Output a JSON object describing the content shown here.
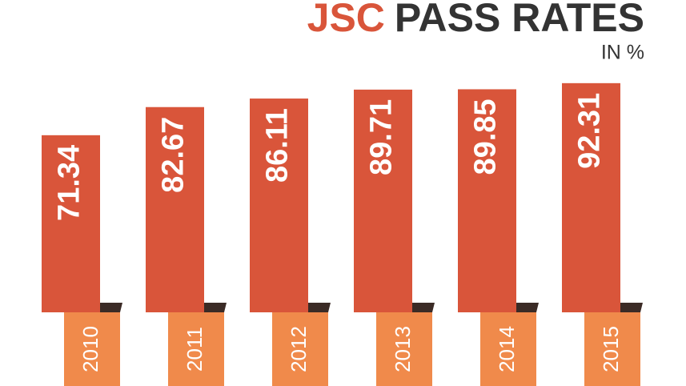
{
  "chart_data": {
    "type": "bar",
    "title": [
      "JSC",
      "PASS RATES"
    ],
    "subtitle": "IN %",
    "categories": [
      "2010",
      "2011",
      "2012",
      "2013",
      "2014",
      "2015"
    ],
    "values": [
      71.34,
      82.67,
      86.11,
      89.71,
      89.85,
      92.31
    ],
    "color": "#d9553a",
    "tab_color": "#f08a4b",
    "fold_color": "#3b2b26",
    "title_colors": [
      "#d9553a",
      "#333333"
    ]
  }
}
